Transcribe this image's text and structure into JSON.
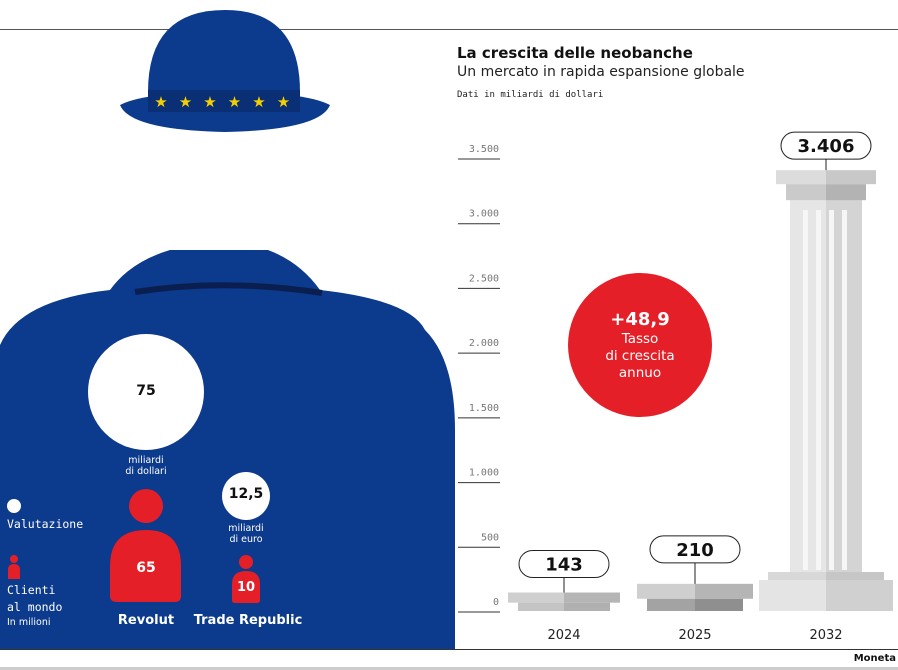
{
  "header": {
    "title": "La crescita delle neobanche",
    "subtitle": "Un mercato in rapida espansione globale",
    "note": "Dati in miliardi di dollari"
  },
  "legend": {
    "valuation": "Valutazione",
    "clients_line1": "Clienti",
    "clients_line2": "al mondo",
    "clients_unit": "In milioni"
  },
  "companies": [
    {
      "name": "Revolut",
      "valuation": "75",
      "valuation_unit_line1": "miliardi",
      "valuation_unit_line2": "di dollari",
      "clients": "65"
    },
    {
      "name": "Trade Republic",
      "valuation": "12,5",
      "valuation_unit_line1": "miliardi",
      "valuation_unit_line2": "di euro",
      "clients": "10"
    }
  ],
  "growth": {
    "value": "+48,9",
    "line1": "Tasso",
    "line2": "di crescita",
    "line3": "annuo"
  },
  "colors": {
    "blue": "#0c3a8c",
    "red": "#e51f27",
    "grey": "#c8c8c8"
  },
  "chart_data": {
    "type": "bar",
    "title": "La crescita delle neobanche",
    "subtitle": "Un mercato in rapida espansione globale",
    "ylabel": "Dati in miliardi di dollari",
    "categories": [
      "2024",
      "2025",
      "2032"
    ],
    "values": [
      143,
      210,
      3406
    ],
    "value_labels": [
      "143",
      "210",
      "3.406"
    ],
    "ylim": [
      0,
      3500
    ],
    "yticks": [
      0,
      500,
      1000,
      1500,
      2000,
      2500,
      3000,
      3500
    ],
    "ytick_labels": [
      "0",
      "500",
      "1.000",
      "1.500",
      "2.000",
      "2.500",
      "3.000",
      "3.500"
    ],
    "grid": false
  },
  "footer": {
    "credit": "Moneta"
  }
}
